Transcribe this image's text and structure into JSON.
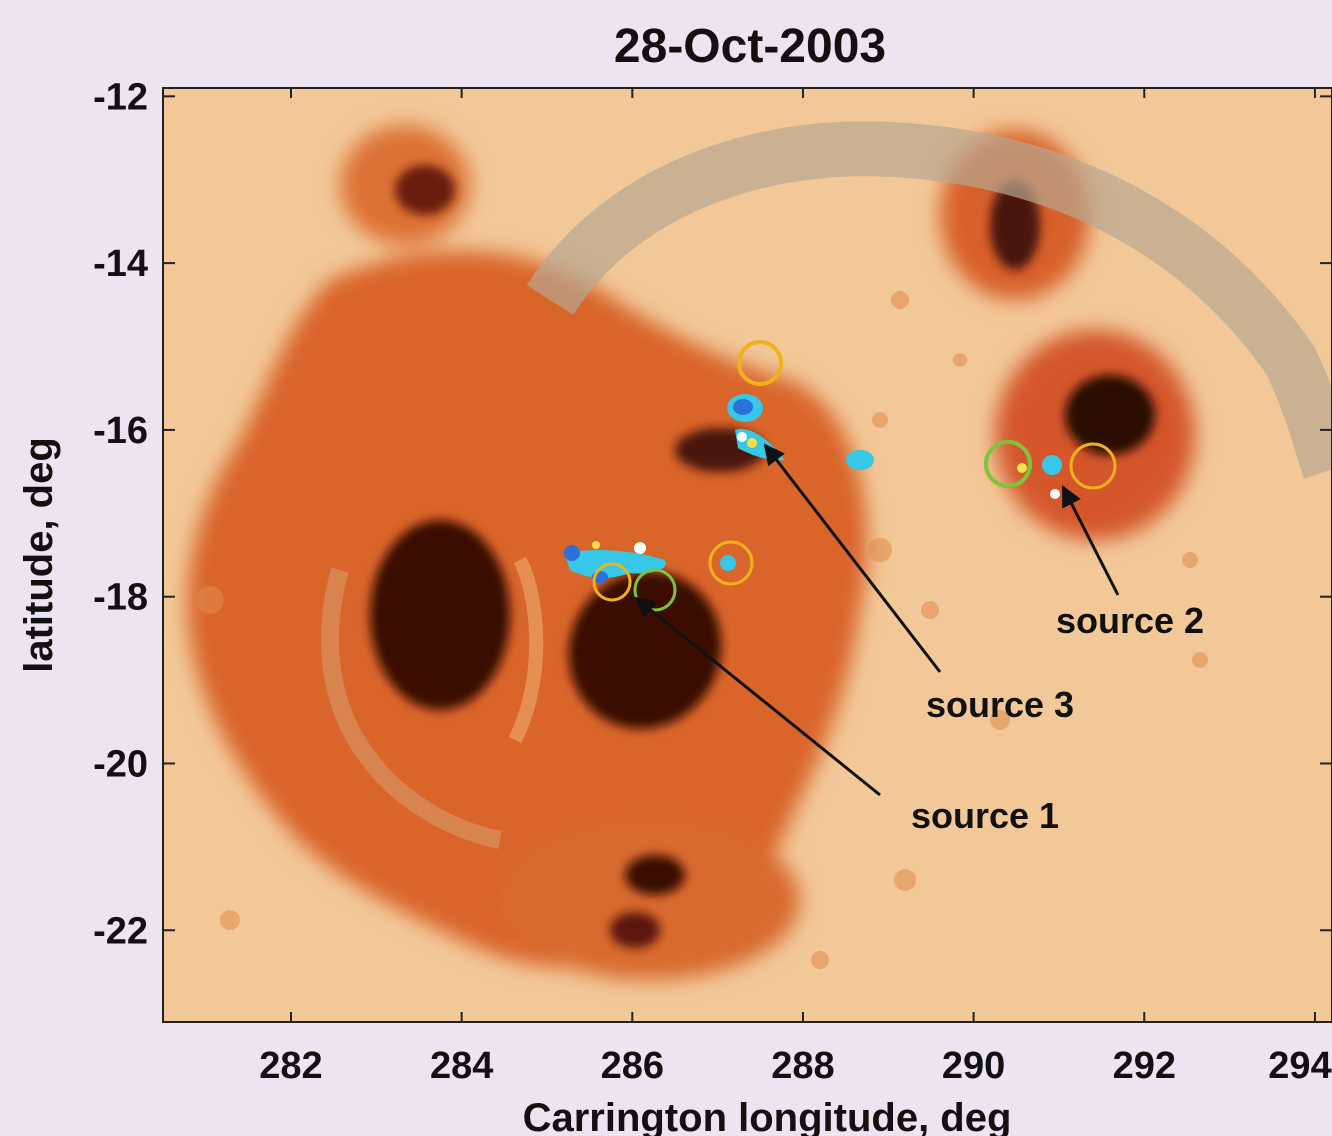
{
  "figure": {
    "title": "28-Oct-2003",
    "xlabel": "Carrington  longitude,  deg",
    "ylabel": "latitude,  deg",
    "x_ticks": [
      282,
      284,
      286,
      288,
      290,
      292,
      294
    ],
    "y_ticks": [
      -12,
      -14,
      -16,
      -18,
      -20,
      -22
    ],
    "xlim": [
      280.5,
      294.2
    ],
    "ylim": [
      -23.1,
      -11.9
    ],
    "annotations": [
      {
        "label": "source 1",
        "points_to": [
          286.1,
          -17.9
        ]
      },
      {
        "label": "source 2",
        "points_to": [
          291.2,
          -16.6
        ]
      },
      {
        "label": "source 3",
        "points_to": [
          287.6,
          -16.1
        ]
      }
    ]
  },
  "colors": {
    "background": "#ece4f1",
    "photosphere": "#f2c898",
    "penumbra": "#d9652a",
    "umbra": "#3a0b06",
    "contour_cyan": "#36c8e6",
    "contour_blue": "#2a72d8",
    "circle_yellow": "#f0b21c",
    "circle_green": "#7fc33a"
  }
}
